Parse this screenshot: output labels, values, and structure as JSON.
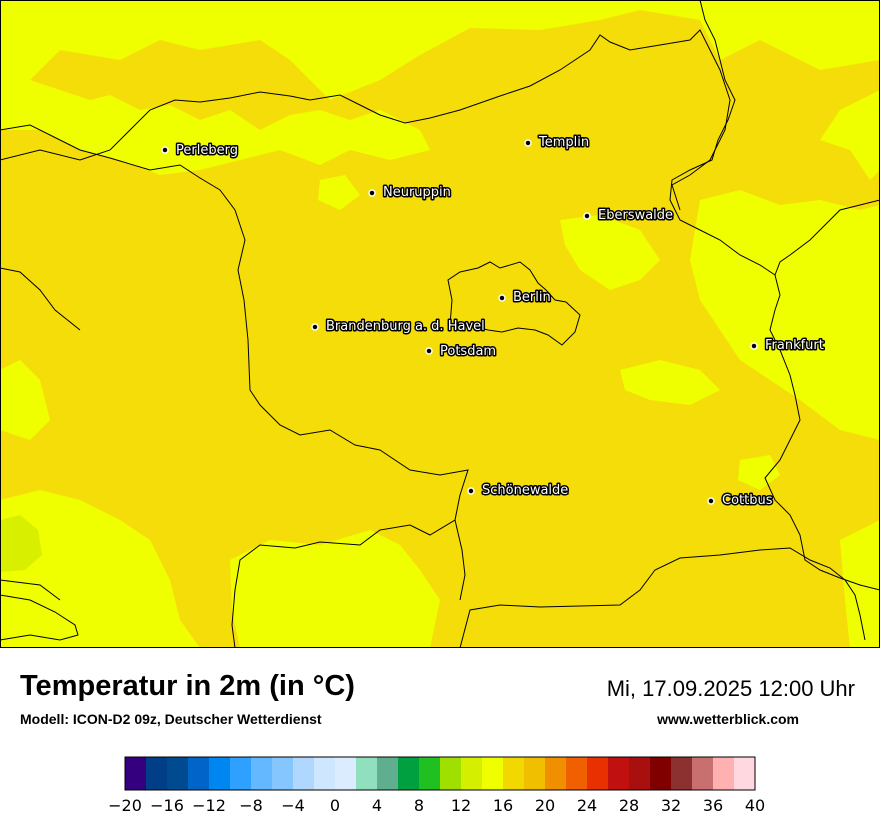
{
  "title": "Temperatur in 2m (in °C)",
  "model": "Modell: ICON-D2 09z, Deutscher Wetterdienst",
  "datetime": "Mi, 17.09.2025 12:00 Uhr",
  "website": "www.wetterblick.com",
  "cities": [
    {
      "name": "Perleberg"
    },
    {
      "name": "Templin"
    },
    {
      "name": "Neuruppin"
    },
    {
      "name": "Eberswalde"
    },
    {
      "name": "Berlin"
    },
    {
      "name": "Brandenburg a. d. Havel"
    },
    {
      "name": "Potsdam"
    },
    {
      "name": "Frankfurt"
    },
    {
      "name": "Schönewalde"
    },
    {
      "name": "Cottbus"
    }
  ],
  "legend": {
    "min": -20,
    "max": 40,
    "step": 2,
    "labels": [
      "−20",
      "−16",
      "−12",
      "−8",
      "−4",
      "0",
      "4",
      "8",
      "12",
      "16",
      "20",
      "24",
      "28",
      "32",
      "36",
      "40"
    ],
    "colors": [
      "#34007f",
      "#003f88",
      "#004a90",
      "#0064c8",
      "#0086f0",
      "#2ea0ff",
      "#64b8ff",
      "#86c6ff",
      "#b0d8ff",
      "#cfe6ff",
      "#dcecff",
      "#90e0c0",
      "#60ae90",
      "#00a040",
      "#20c020",
      "#a0e000",
      "#d4f000",
      "#f0ff00",
      "#f0d800",
      "#f0c000",
      "#f09000",
      "#f06000",
      "#e83000",
      "#c01010",
      "#a81010",
      "#800000",
      "#8c3030",
      "#c87070",
      "#ffb0b0",
      "#ffd8e0"
    ]
  },
  "colors": {
    "temp_16_18": "#f5dd0a",
    "temp_18_20": "#f0ff00",
    "temp_14_16": "#d8f000",
    "border": "#000000"
  }
}
